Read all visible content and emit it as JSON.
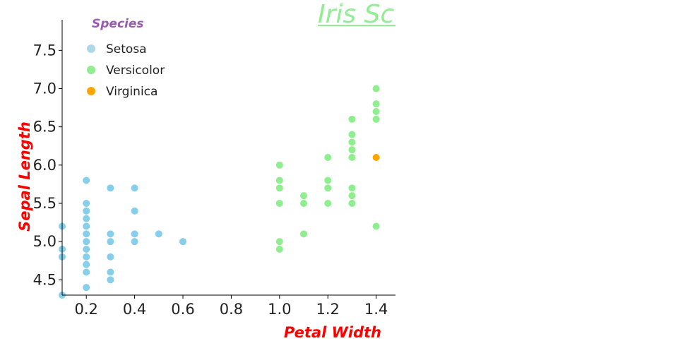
{
  "chart_data": {
    "type": "scatter",
    "title": "Iris Scatter",
    "title_color": "#90ee90",
    "xlabel": "Petal Width",
    "ylabel": "Sepal Length",
    "axis_label_color": "#ff0000",
    "xlim": [
      0.1,
      1.48
    ],
    "ylim": [
      4.3,
      7.9
    ],
    "x_ticks": [
      0.2,
      0.4,
      0.6,
      0.8,
      1.0,
      1.2,
      1.4
    ],
    "x_tick_labels": [
      "0.2",
      "0.4",
      "0.6",
      "0.8",
      "1.0",
      "1.2",
      "1.4"
    ],
    "y_ticks": [
      4.5,
      5.0,
      5.5,
      6.0,
      6.5,
      7.0,
      7.5
    ],
    "y_tick_labels": [
      "4.5",
      "5.0",
      "5.5",
      "6.0",
      "6.5",
      "7.0",
      "7.5"
    ],
    "grid": false,
    "legend": {
      "title": "Species",
      "title_color": "#9b59b6",
      "placement": "top-left"
    },
    "series": [
      {
        "name": "Setosa",
        "color": "#87ceeb",
        "legend_color": "#add8e6",
        "points": [
          [
            0.1,
            5.2
          ],
          [
            0.1,
            4.9
          ],
          [
            0.1,
            4.8
          ],
          [
            0.1,
            4.3
          ],
          [
            0.2,
            5.8
          ],
          [
            0.2,
            5.5
          ],
          [
            0.2,
            5.4
          ],
          [
            0.2,
            5.3
          ],
          [
            0.2,
            5.2
          ],
          [
            0.2,
            5.1
          ],
          [
            0.2,
            5.0
          ],
          [
            0.2,
            4.9
          ],
          [
            0.2,
            4.8
          ],
          [
            0.2,
            4.7
          ],
          [
            0.2,
            4.6
          ],
          [
            0.2,
            4.4
          ],
          [
            0.3,
            5.7
          ],
          [
            0.3,
            5.1
          ],
          [
            0.3,
            5.0
          ],
          [
            0.3,
            4.8
          ],
          [
            0.3,
            4.6
          ],
          [
            0.3,
            4.5
          ],
          [
            0.4,
            5.7
          ],
          [
            0.4,
            5.4
          ],
          [
            0.4,
            5.1
          ],
          [
            0.4,
            5.0
          ],
          [
            0.5,
            5.1
          ],
          [
            0.6,
            5.0
          ]
        ]
      },
      {
        "name": "Versicolor",
        "color": "#90ee90",
        "legend_color": "#90ee90",
        "points": [
          [
            1.0,
            6.0
          ],
          [
            1.0,
            5.8
          ],
          [
            1.0,
            5.7
          ],
          [
            1.0,
            5.5
          ],
          [
            1.0,
            5.0
          ],
          [
            1.0,
            4.9
          ],
          [
            1.1,
            5.6
          ],
          [
            1.1,
            5.5
          ],
          [
            1.1,
            5.1
          ],
          [
            1.2,
            6.1
          ],
          [
            1.2,
            5.8
          ],
          [
            1.2,
            5.7
          ],
          [
            1.2,
            5.5
          ],
          [
            1.3,
            6.6
          ],
          [
            1.3,
            6.4
          ],
          [
            1.3,
            6.3
          ],
          [
            1.3,
            6.2
          ],
          [
            1.3,
            6.1
          ],
          [
            1.3,
            5.7
          ],
          [
            1.3,
            5.6
          ],
          [
            1.3,
            5.5
          ],
          [
            1.4,
            7.0
          ],
          [
            1.4,
            6.8
          ],
          [
            1.4,
            6.7
          ],
          [
            1.4,
            6.6
          ],
          [
            1.4,
            5.2
          ]
        ]
      },
      {
        "name": "Virginica",
        "color": "#ffa500",
        "legend_color": "#ffa500",
        "points": [
          [
            1.4,
            6.1
          ]
        ]
      }
    ]
  }
}
